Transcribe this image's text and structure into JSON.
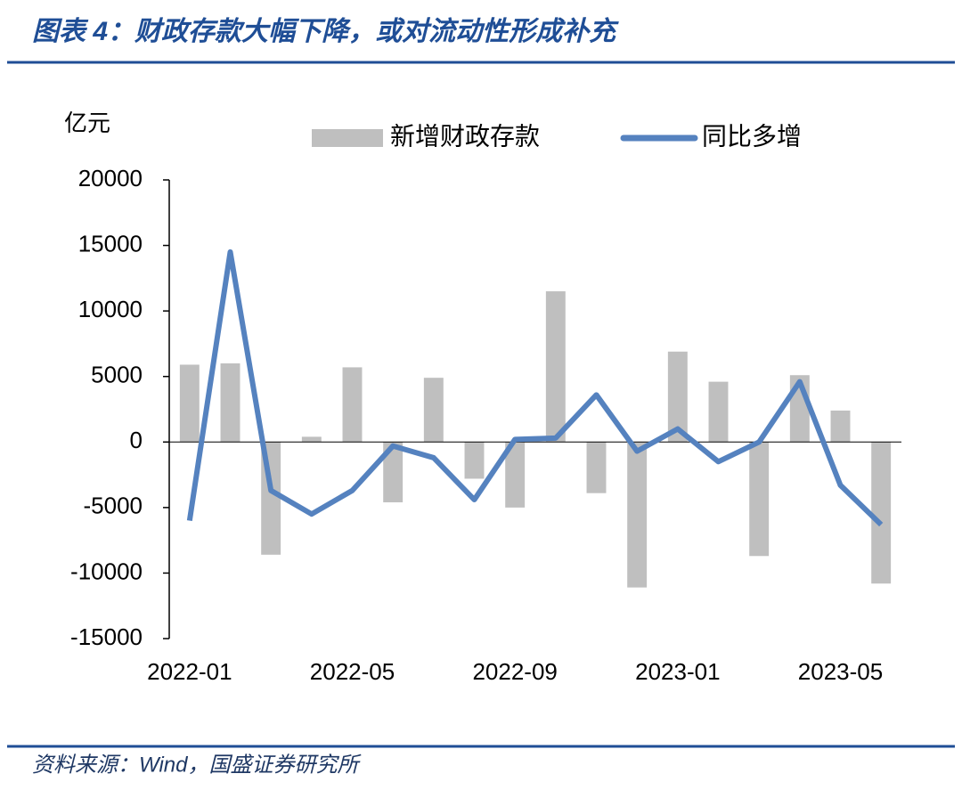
{
  "title": "图表 4：财政存款大幅下降，或对流动性形成补充",
  "source": "资料来源：Wind，国盛证券研究所",
  "chart_data": {
    "type": "bar_line",
    "y_label": "亿元",
    "categories": [
      "2022-01",
      null,
      null,
      null,
      "2022-05",
      null,
      null,
      null,
      "2022-09",
      null,
      null,
      null,
      "2023-01",
      null,
      null,
      null,
      "2023-05",
      null
    ],
    "series": [
      {
        "name": "新增财政存款",
        "type": "bar",
        "color": "#bfbfbf",
        "values": [
          5900,
          6000,
          -8600,
          400,
          5700,
          -4600,
          4900,
          -2800,
          -5000,
          11500,
          -3900,
          -11100,
          6900,
          4600,
          -8700,
          5100,
          2400,
          -10800
        ]
      },
      {
        "name": "同比多增",
        "type": "line",
        "color": "#5582bf",
        "values": [
          -6000,
          14500,
          -3700,
          -5500,
          -3700,
          -300,
          -1200,
          -4400,
          200,
          300,
          3600,
          -700,
          1000,
          -1500,
          0,
          4600,
          -3300,
          -6300
        ]
      }
    ],
    "ylim": [
      -15000,
      20000
    ],
    "yticks": [
      -15000,
      -10000,
      -5000,
      0,
      5000,
      10000,
      15000,
      20000
    ]
  }
}
